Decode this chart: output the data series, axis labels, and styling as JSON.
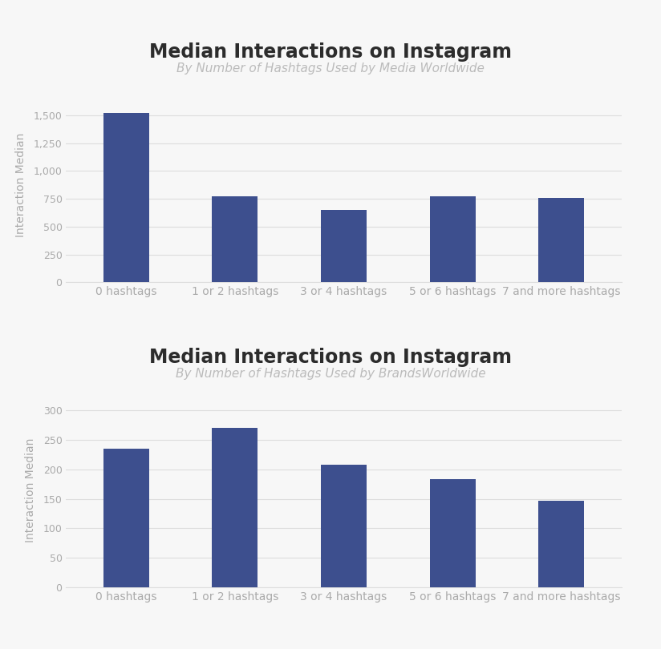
{
  "chart1": {
    "title": "Median Interactions on Instagram",
    "subtitle": "By Number of Hashtags Used by Media Worldwide",
    "categories": [
      "0 hashtags",
      "1 or 2 hashtags",
      "3 or 4 hashtags",
      "5 or 6 hashtags",
      "7 and more hashtags"
    ],
    "values": [
      1520,
      775,
      650,
      770,
      760
    ],
    "ylim": [
      0,
      1750
    ],
    "yticks": [
      0,
      250,
      500,
      750,
      1000,
      1250,
      1500
    ],
    "ytick_labels": [
      "0",
      "250",
      "500",
      "750",
      "1,000",
      "1,250",
      "1,500"
    ]
  },
  "chart2": {
    "title": "Median Interactions on Instagram",
    "subtitle": "By Number of Hashtags Used by BrandsWorldwide",
    "categories": [
      "0 hashtags",
      "1 or 2 hashtags",
      "3 or 4 hashtags",
      "5 or 6 hashtags",
      "7 and more hashtags"
    ],
    "values": [
      235,
      270,
      208,
      184,
      147
    ],
    "ylim": [
      0,
      330
    ],
    "yticks": [
      0,
      50,
      100,
      150,
      200,
      250,
      300
    ],
    "ytick_labels": [
      "0",
      "50",
      "100",
      "150",
      "200",
      "250",
      "300"
    ]
  },
  "bar_color": "#3d4f8e",
  "ylabel": "Interaction Median",
  "bg_color": "#f7f7f7",
  "plot_bg_color": "#f7f7f7",
  "title_color": "#2c2c2c",
  "subtitle_color": "#bbbbbb",
  "tick_color": "#aaaaaa",
  "grid_color": "#dddddd",
  "title_fontsize": 17,
  "subtitle_fontsize": 11,
  "ylabel_fontsize": 10,
  "xtick_fontsize": 10,
  "ytick_fontsize": 9
}
